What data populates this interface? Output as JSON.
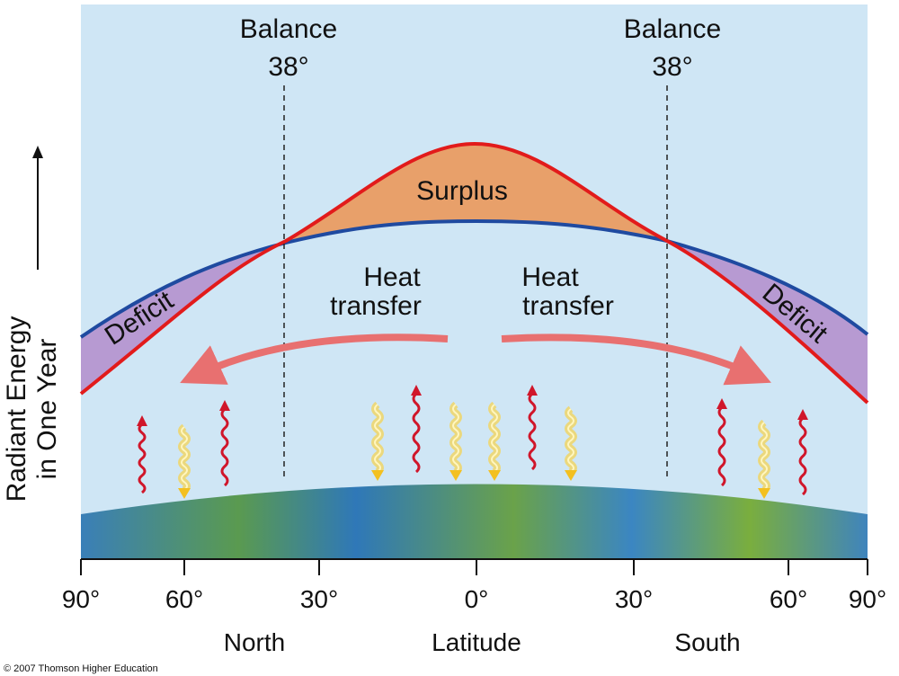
{
  "balance_markers": [
    {
      "label": "Balance",
      "latitude": "38°"
    },
    {
      "label": "Balance",
      "latitude": "38°"
    }
  ],
  "regions": {
    "surplus": "Surplus",
    "deficit_left": "Deficit",
    "deficit_right": "Deficit"
  },
  "heat_transfer": [
    [
      "Heat",
      "transfer"
    ],
    [
      "Heat",
      "transfer"
    ]
  ],
  "y_label": [
    "Radiant Energy",
    "in One Year"
  ],
  "x_ticks": [
    "90°",
    "60°",
    "30°",
    "0°",
    "30°",
    "60°",
    "90°"
  ],
  "x_labels": [
    "North",
    "Latitude",
    "South"
  ],
  "copyright": "© 2007 Thomson Higher Education"
}
